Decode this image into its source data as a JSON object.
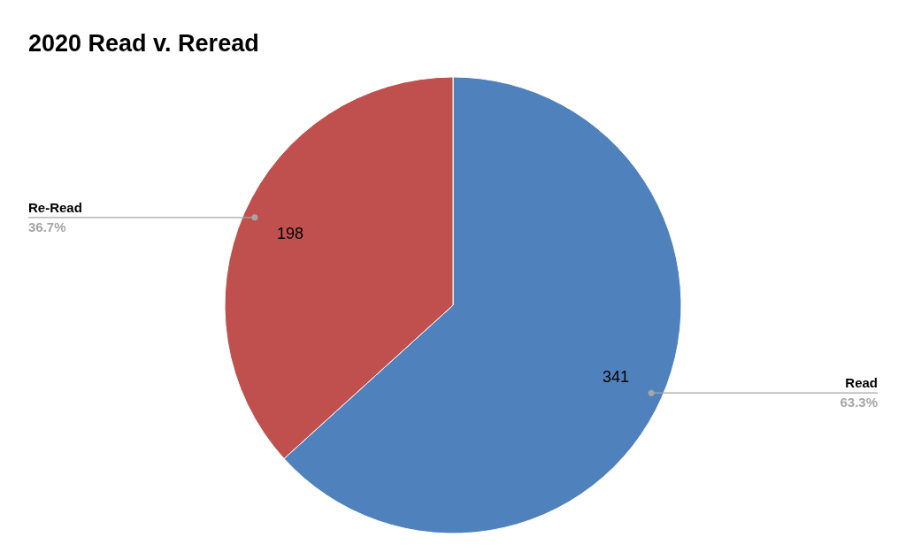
{
  "chart_data": {
    "type": "pie",
    "title": "2020 Read v. Reread",
    "categories": [
      "Read",
      "Re-Read"
    ],
    "values": [
      341,
      198
    ],
    "colors": [
      "#4f81bd",
      "#c0504d"
    ],
    "data_labels": true,
    "annotations": [
      {
        "text": "63.3%",
        "x": "Read"
      },
      {
        "text": "36.7%",
        "x": "Re-Read"
      }
    ]
  }
}
